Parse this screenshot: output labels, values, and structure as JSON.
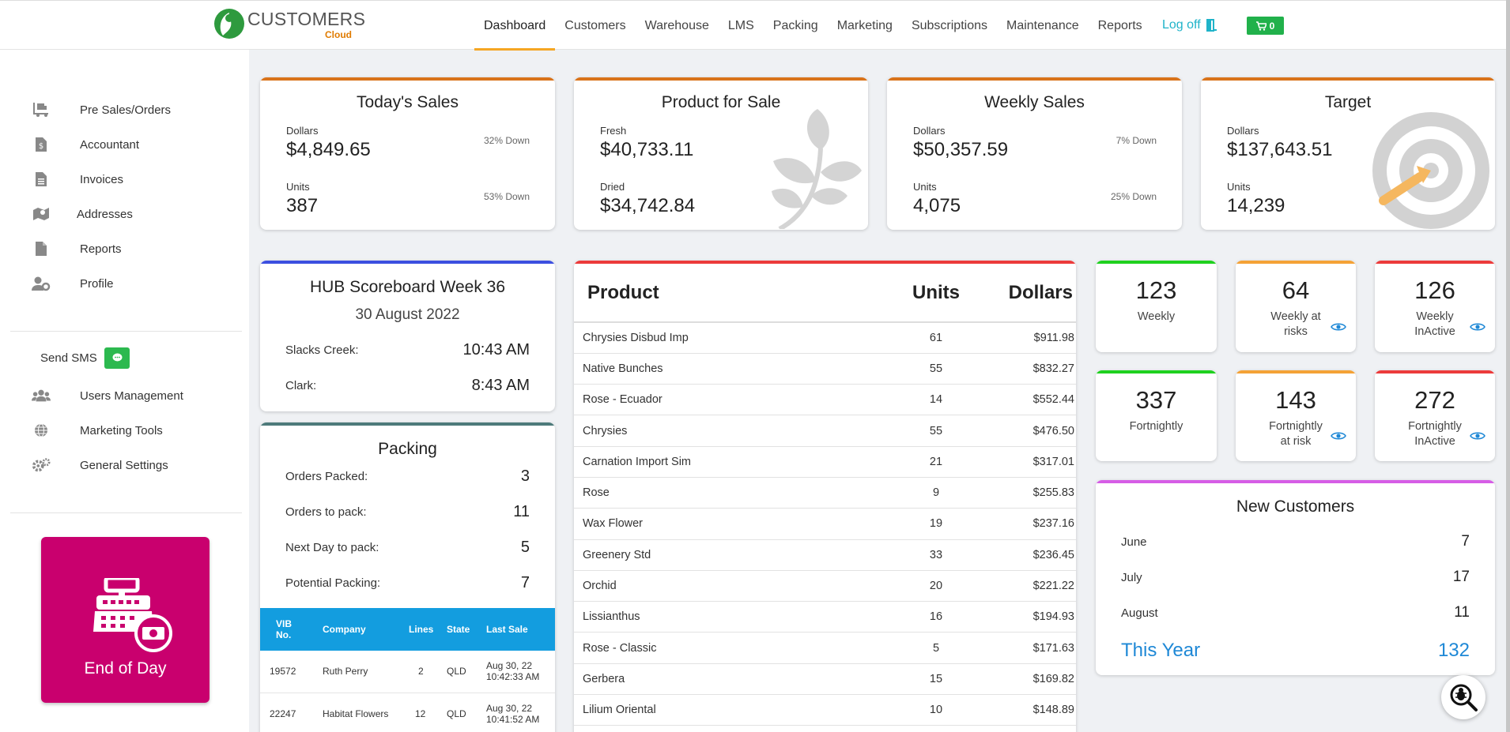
{
  "brand": {
    "name": "CUSTOMERS",
    "sub": "Cloud"
  },
  "nav": {
    "items": [
      {
        "label": "Dashboard"
      },
      {
        "label": "Customers"
      },
      {
        "label": "Warehouse"
      },
      {
        "label": "LMS"
      },
      {
        "label": "Packing"
      },
      {
        "label": "Marketing"
      },
      {
        "label": "Subscriptions"
      },
      {
        "label": "Maintenance"
      },
      {
        "label": "Reports"
      }
    ],
    "active": "Dashboard",
    "logoff": "Log off",
    "cart_count": "0"
  },
  "sidebar": {
    "items": [
      {
        "label": "Pre Sales/Orders",
        "icon": "trolley-icon"
      },
      {
        "label": "Accountant",
        "icon": "dollar-document-icon"
      },
      {
        "label": "Invoices",
        "icon": "invoice-icon"
      },
      {
        "label": "Addresses",
        "icon": "map-marker-icon"
      },
      {
        "label": "Reports",
        "icon": "file-icon"
      },
      {
        "label": "Profile",
        "icon": "user-gear-icon"
      }
    ],
    "send_sms": "Send SMS",
    "items2": [
      {
        "label": "Users Management",
        "icon": "users-icon"
      },
      {
        "label": "Marketing Tools",
        "icon": "globe-icon"
      },
      {
        "label": "General Settings",
        "icon": "gears-icon"
      }
    ],
    "end_of_day": "End of Day"
  },
  "kpis": {
    "todays_sales": {
      "title": "Today's Sales",
      "l1": "Dollars",
      "v1": "$4,849.65",
      "c1": "32% Down",
      "l2": "Units",
      "v2": "387",
      "c2": "53% Down"
    },
    "product_for_sale": {
      "title": "Product for Sale",
      "l1": "Fresh",
      "v1": "$40,733.11",
      "l2": "Dried",
      "v2": "$34,742.84"
    },
    "weekly_sales": {
      "title": "Weekly Sales",
      "l1": "Dollars",
      "v1": "$50,357.59",
      "c1": "7% Down",
      "l2": "Units",
      "v2": "4,075",
      "c2": "25% Down"
    },
    "target": {
      "title": "Target",
      "l1": "Dollars",
      "v1": "$137,643.51",
      "l2": "Units",
      "v2": "14,239"
    }
  },
  "hub": {
    "title": "HUB Scoreboard Week 36",
    "date": "30 August 2022",
    "rows": [
      {
        "label": "Slacks Creek:",
        "time": "10:43 AM"
      },
      {
        "label": "Clark:",
        "time": "8:43 AM"
      }
    ]
  },
  "packing": {
    "title": "Packing",
    "rows": [
      {
        "label": "Orders Packed:",
        "value": "3"
      },
      {
        "label": "Orders to pack:",
        "value": "11"
      },
      {
        "label": "Next Day to pack:",
        "value": "5"
      },
      {
        "label": "Potential Packing:",
        "value": "7"
      }
    ],
    "headers": [
      "VIB No.",
      "Company",
      "Lines",
      "State",
      "Last Sale"
    ],
    "orders": [
      {
        "vib": "19572",
        "company": "Ruth Perry",
        "lines": "2",
        "state": "QLD",
        "date": "Aug 30, 22",
        "time": "10:42:33 AM"
      },
      {
        "vib": "22247",
        "company": "Habitat Flowers",
        "lines": "12",
        "state": "QLD",
        "date": "Aug 30, 22",
        "time": "10:41:52 AM"
      }
    ]
  },
  "products": {
    "headers": {
      "product": "Product",
      "units": "Units",
      "dollars": "Dollars"
    },
    "rows": [
      {
        "name": "Chrysies Disbud Imp",
        "units": "61",
        "dollars": "$911.98"
      },
      {
        "name": "Native Bunches",
        "units": "55",
        "dollars": "$832.27"
      },
      {
        "name": "Rose - Ecuador",
        "units": "14",
        "dollars": "$552.44"
      },
      {
        "name": "Chrysies",
        "units": "55",
        "dollars": "$476.50"
      },
      {
        "name": "Carnation Import Sim",
        "units": "21",
        "dollars": "$317.01"
      },
      {
        "name": "Rose",
        "units": "9",
        "dollars": "$255.83"
      },
      {
        "name": "Wax Flower",
        "units": "19",
        "dollars": "$237.16"
      },
      {
        "name": "Greenery Std",
        "units": "33",
        "dollars": "$236.45"
      },
      {
        "name": "Orchid",
        "units": "20",
        "dollars": "$221.22"
      },
      {
        "name": "Lissianthus",
        "units": "16",
        "dollars": "$194.93"
      },
      {
        "name": "Rose - Classic",
        "units": "5",
        "dollars": "$171.63"
      },
      {
        "name": "Gerbera",
        "units": "15",
        "dollars": "$169.82"
      },
      {
        "name": "Lilium Oriental",
        "units": "10",
        "dollars": "$148.89"
      }
    ]
  },
  "stats": [
    {
      "value": "123",
      "line1": "Weekly",
      "line2": "",
      "color": "#1fd11f",
      "eye": false
    },
    {
      "value": "64",
      "line1": "Weekly at",
      "line2": "risks",
      "color": "#f4a236",
      "eye": true
    },
    {
      "value": "126",
      "line1": "Weekly",
      "line2": "InActive",
      "color": "#ec3b3b",
      "eye": true
    },
    {
      "value": "337",
      "line1": "Fortnightly",
      "line2": "",
      "color": "#1fd11f",
      "eye": false
    },
    {
      "value": "143",
      "line1": "Fortnightly",
      "line2": "at risk",
      "color": "#f4a236",
      "eye": true
    },
    {
      "value": "272",
      "line1": "Fortnightly",
      "line2": "InActive",
      "color": "#ec3b3b",
      "eye": true
    }
  ],
  "new_customers": {
    "title": "New Customers",
    "rows": [
      {
        "label": "June",
        "value": "7"
      },
      {
        "label": "July",
        "value": "17"
      },
      {
        "label": "August",
        "value": "11"
      }
    ],
    "year_label": "This Year",
    "year_value": "132"
  },
  "colors": {
    "orange": "#d9731a",
    "blue": "#3c4fe0",
    "teal": "#4d7a7a",
    "red": "#ec3b3b",
    "purple": "#d65de6",
    "accent": "#f5a623",
    "eod": "#c9006e",
    "link": "#1e88d6"
  }
}
